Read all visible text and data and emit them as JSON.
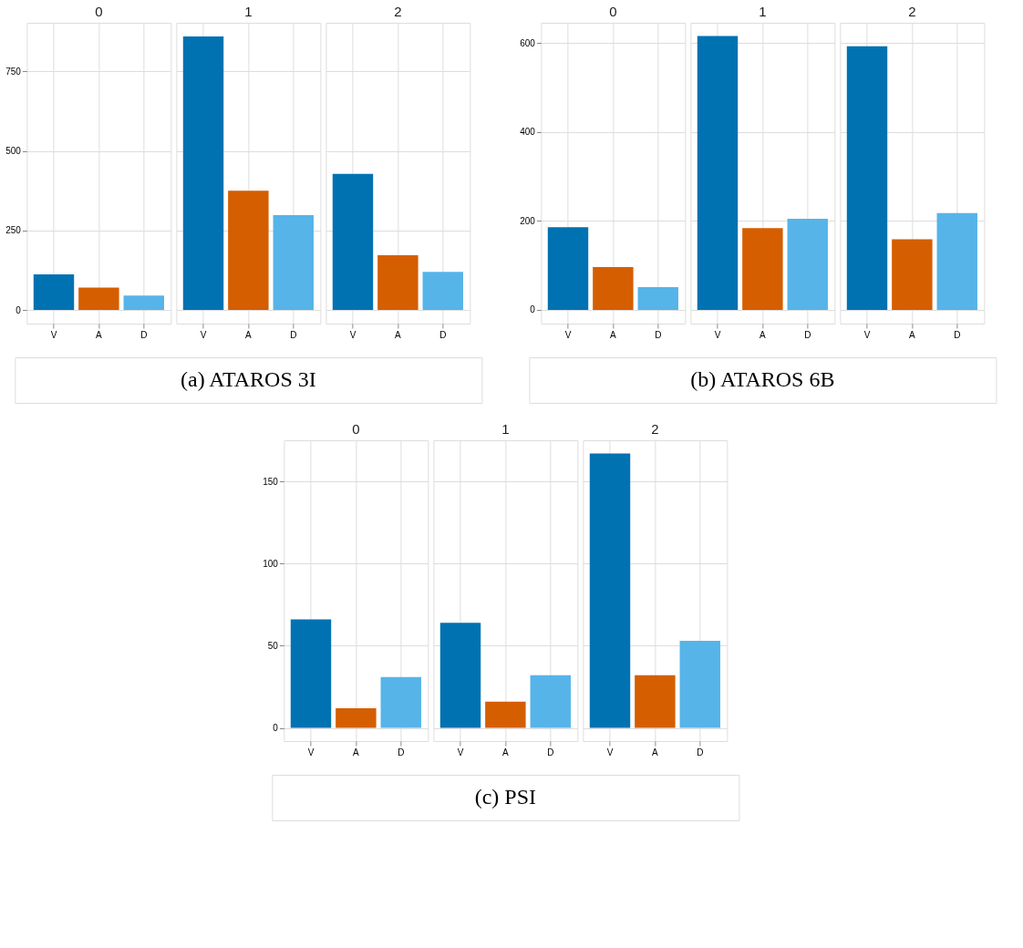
{
  "chart_data": [
    {
      "type": "bar",
      "title": "0",
      "categories": [
        "V",
        "A",
        "D"
      ],
      "values": [
        112,
        70,
        45
      ],
      "colors": [
        "#0072b2",
        "#d55e00",
        "#56b4e9"
      ],
      "ylim": [
        -43,
        903
      ],
      "yticks": [
        0,
        250,
        500,
        750
      ],
      "grid": true,
      "annotations": [
        "(a) ATAROS 3I"
      ]
    },
    {
      "type": "bar",
      "title": "1",
      "categories": [
        "V",
        "A",
        "D"
      ],
      "values": [
        860,
        375,
        298
      ],
      "colors": [
        "#0072b2",
        "#d55e00",
        "#56b4e9"
      ],
      "ylim": [
        -43,
        903
      ],
      "yticks": [
        0,
        250,
        500,
        750
      ],
      "grid": true,
      "tick_labels": "x"
    },
    {
      "type": "bar",
      "title": "2",
      "categories": [
        "V",
        "A",
        "D"
      ],
      "values": [
        428,
        172,
        120
      ],
      "colors": [
        "#0072b2",
        "#d55e00",
        "#56b4e9"
      ],
      "ylim": [
        -43,
        903
      ],
      "yticks": [
        0,
        250,
        500,
        750
      ],
      "grid": true,
      "tick_labels": "x"
    },
    {
      "type": "bar",
      "title": "0",
      "categories": [
        "V",
        "A",
        "D"
      ],
      "values": [
        186,
        96,
        51
      ],
      "colors": [
        "#0072b2",
        "#d55e00",
        "#56b4e9"
      ],
      "ylim": [
        -31,
        646
      ],
      "yticks": [
        0,
        200,
        400,
        600
      ],
      "grid": true,
      "annotations": [
        "(b) ATAROS 6B"
      ]
    },
    {
      "type": "bar",
      "title": "1",
      "categories": [
        "V",
        "A",
        "D"
      ],
      "values": [
        616,
        184,
        205
      ],
      "colors": [
        "#0072b2",
        "#d55e00",
        "#56b4e9"
      ],
      "ylim": [
        -31,
        646
      ],
      "yticks": [
        0,
        200,
        400,
        600
      ],
      "grid": true,
      "tick_labels": "x"
    },
    {
      "type": "bar",
      "title": "2",
      "categories": [
        "V",
        "A",
        "D"
      ],
      "values": [
        593,
        159,
        218
      ],
      "colors": [
        "#0072b2",
        "#d55e00",
        "#56b4e9"
      ],
      "ylim": [
        -31,
        646
      ],
      "yticks": [
        0,
        200,
        400,
        600
      ],
      "grid": true,
      "tick_labels": "x"
    },
    {
      "type": "bar",
      "title": "0",
      "categories": [
        "V",
        "A",
        "D"
      ],
      "values": [
        66,
        12,
        31
      ],
      "colors": [
        "#0072b2",
        "#d55e00",
        "#56b4e9"
      ],
      "ylim": [
        -8,
        175
      ],
      "yticks": [
        0,
        50,
        100,
        150
      ],
      "grid": true,
      "annotations": [
        "(c) PSI"
      ]
    },
    {
      "type": "bar",
      "title": "1",
      "categories": [
        "V",
        "A",
        "D"
      ],
      "values": [
        64,
        16,
        32
      ],
      "colors": [
        "#0072b2",
        "#d55e00",
        "#56b4e9"
      ],
      "ylim": [
        -8,
        175
      ],
      "yticks": [
        0,
        50,
        100,
        150
      ],
      "grid": true,
      "tick_labels": "x"
    },
    {
      "type": "bar",
      "title": "2",
      "categories": [
        "V",
        "A",
        "D"
      ],
      "values": [
        167,
        32,
        53
      ],
      "colors": [
        "#0072b2",
        "#d55e00",
        "#56b4e9"
      ],
      "ylim": [
        -8,
        175
      ],
      "yticks": [
        0,
        50,
        100,
        150
      ],
      "grid": true,
      "tick_labels": "x"
    }
  ]
}
